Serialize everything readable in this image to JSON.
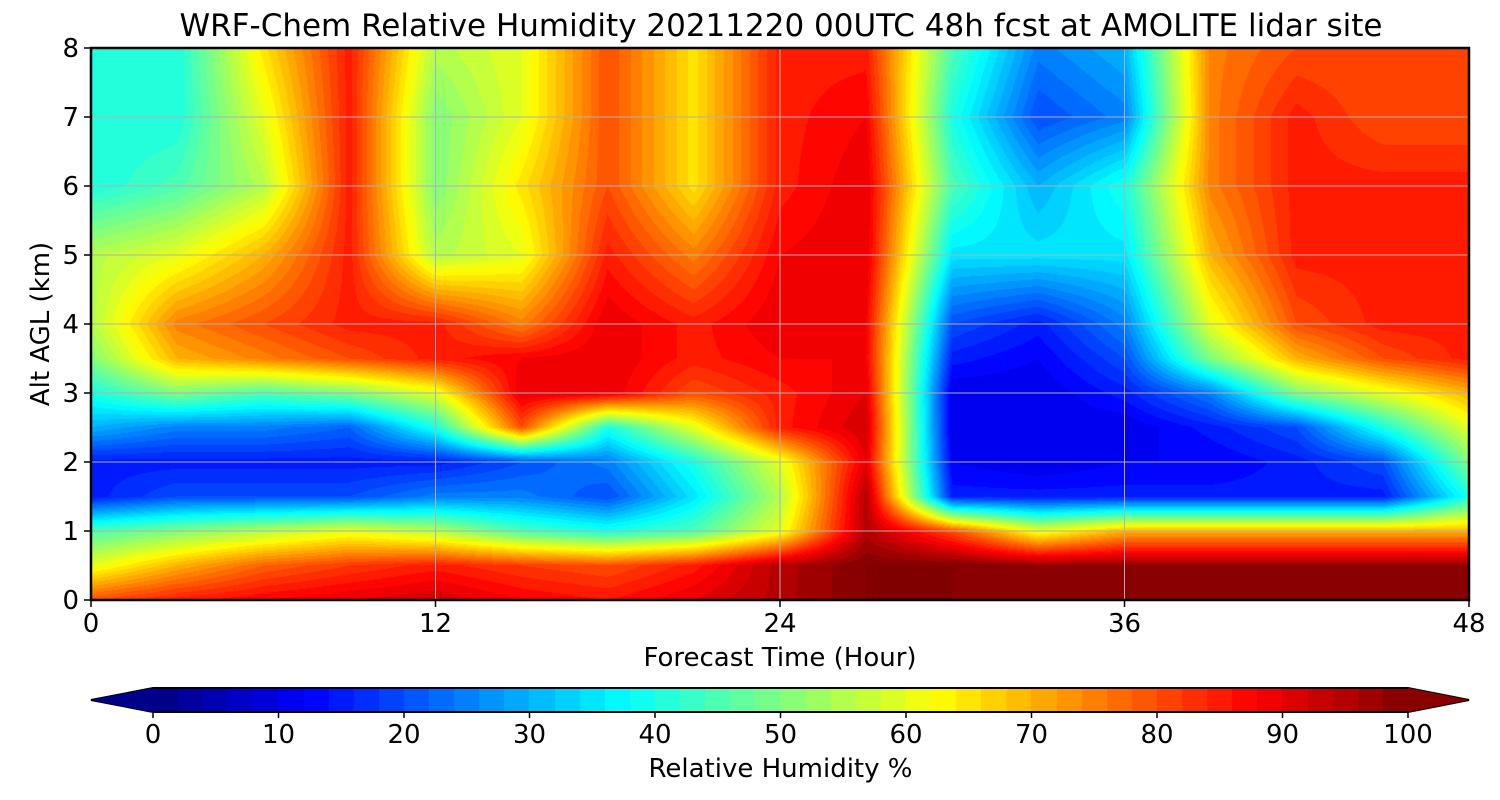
{
  "chart_data": {
    "type": "heatmap",
    "title": "WRF-Chem Relative Humidity 20211220 00UTC 48h fcst at AMOLITE lidar site",
    "xlabel": "Forecast Time (Hour)",
    "ylabel": "Alt AGL (km)",
    "xlim": [
      0,
      48
    ],
    "ylim": [
      0,
      8
    ],
    "x_ticks": [
      0,
      12,
      24,
      36,
      48
    ],
    "y_ticks": [
      0,
      1,
      2,
      3,
      4,
      5,
      6,
      7,
      8
    ],
    "grid": true,
    "colormap": "jet",
    "x": [
      0,
      3,
      6,
      9,
      12,
      15,
      18,
      21,
      24,
      27,
      30,
      33,
      36,
      39,
      42,
      45,
      48
    ],
    "y": [
      0,
      0.5,
      1,
      1.5,
      2,
      2.5,
      3,
      3.5,
      4,
      5,
      6,
      7,
      8
    ],
    "z": [
      [
        80,
        85,
        88,
        90,
        92,
        88,
        86,
        90,
        95,
        100,
        100,
        100,
        100,
        100,
        100,
        100,
        100
      ],
      [
        60,
        70,
        78,
        82,
        85,
        82,
        80,
        85,
        95,
        100,
        100,
        98,
        98,
        98,
        98,
        98,
        98
      ],
      [
        45,
        50,
        55,
        60,
        55,
        45,
        40,
        45,
        60,
        95,
        80,
        60,
        70,
        70,
        70,
        70,
        70
      ],
      [
        15,
        20,
        20,
        20,
        25,
        25,
        20,
        35,
        55,
        95,
        15,
        15,
        15,
        15,
        15,
        15,
        40
      ],
      [
        15,
        15,
        15,
        15,
        15,
        20,
        25,
        40,
        60,
        90,
        12,
        10,
        12,
        12,
        15,
        20,
        50
      ],
      [
        30,
        25,
        25,
        22,
        40,
        80,
        40,
        60,
        85,
        92,
        10,
        10,
        10,
        15,
        20,
        40,
        60
      ],
      [
        40,
        50,
        45,
        50,
        60,
        90,
        90,
        80,
        85,
        90,
        10,
        10,
        15,
        25,
        50,
        60,
        70
      ],
      [
        50,
        70,
        75,
        80,
        85,
        88,
        90,
        85,
        88,
        88,
        15,
        12,
        20,
        50,
        70,
        80,
        85
      ],
      [
        55,
        75,
        80,
        85,
        85,
        75,
        90,
        85,
        90,
        88,
        20,
        15,
        25,
        60,
        80,
        85,
        85
      ],
      [
        55,
        60,
        70,
        85,
        55,
        60,
        85,
        75,
        88,
        90,
        35,
        35,
        35,
        70,
        85,
        85,
        85
      ],
      [
        40,
        45,
        55,
        85,
        50,
        65,
        80,
        65,
        85,
        90,
        45,
        30,
        40,
        75,
        85,
        85,
        85
      ],
      [
        40,
        40,
        60,
        85,
        50,
        60,
        80,
        65,
        85,
        88,
        40,
        20,
        25,
        75,
        85,
        80,
        80
      ],
      [
        40,
        40,
        65,
        85,
        55,
        60,
        80,
        65,
        85,
        85,
        45,
        25,
        30,
        75,
        80,
        80,
        80
      ]
    ],
    "colorbar": {
      "label": "Relative Humidity %",
      "min": 0,
      "max": 100,
      "ticks": [
        0,
        10,
        20,
        30,
        40,
        50,
        60,
        70,
        80,
        90,
        100
      ],
      "extend": "both"
    }
  }
}
